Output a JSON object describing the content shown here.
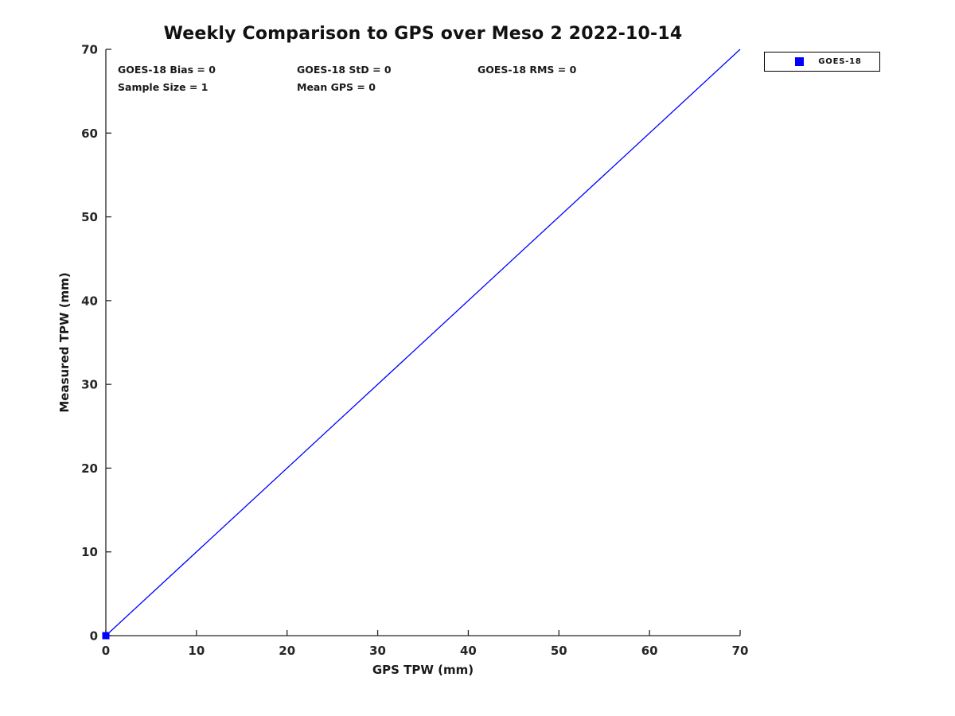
{
  "title": "Weekly Comparison to GPS over Meso 2 2022-10-14",
  "stats": {
    "goes18_bias": "GOES-18 Bias = 0",
    "goes18_std": "GOES-18 StD = 0",
    "goes18_rms": "GOES-18 RMS = 0",
    "sample_size": "Sample Size = 1",
    "mean_gps": "Mean GPS = 0"
  },
  "legend": {
    "label": "GOES-18",
    "marker_color": "#0000ff",
    "position": "top-right-outside"
  },
  "chart_data": {
    "type": "scatter",
    "title": "Weekly Comparison to GPS over Meso 2 2022-10-14",
    "xlabel": "GPS TPW (mm)",
    "ylabel": "Measured TPW (mm)",
    "xlim": [
      0,
      70
    ],
    "ylim": [
      0,
      70
    ],
    "xticks": [
      0,
      10,
      20,
      30,
      40,
      50,
      60,
      70
    ],
    "yticks": [
      0,
      10,
      20,
      30,
      40,
      50,
      60,
      70
    ],
    "grid": false,
    "legend_position": "top-right-outside",
    "series": [
      {
        "name": "GOES-18",
        "marker": "square",
        "marker_size": 9,
        "color": "#0000ff",
        "points": [
          [
            0,
            0
          ]
        ]
      }
    ],
    "reference_line": {
      "x": [
        0,
        70
      ],
      "y": [
        0,
        70
      ],
      "color": "#0000ff",
      "width": 1.3
    },
    "axis_color": "#262626",
    "tick_length": 7,
    "annotations": [
      "GOES-18 Bias = 0",
      "GOES-18 StD = 0",
      "GOES-18 RMS = 0",
      "Sample Size = 1",
      "Mean GPS = 0"
    ]
  }
}
